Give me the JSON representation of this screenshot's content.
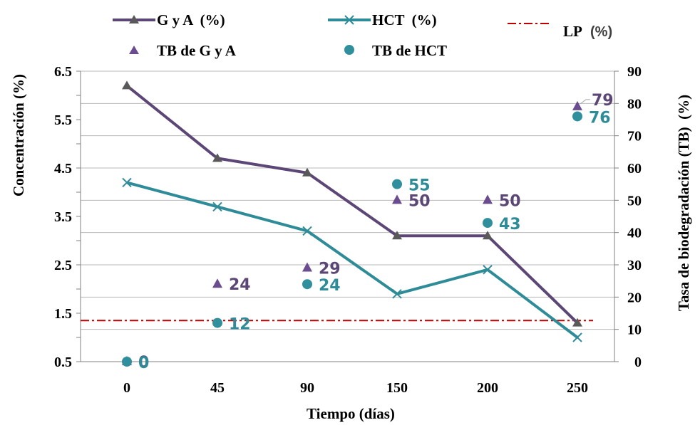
{
  "chart_data": {
    "type": "line",
    "x": [
      "0",
      "45",
      "90",
      "150",
      "200",
      "250"
    ],
    "xlabel": "Tiempo (días)",
    "ylabel": "Concentración (%)",
    "y2label": "Tasa de biodegradación (TB)  (%)",
    "ylim": [
      0.5,
      6.5
    ],
    "yticks": [
      "0.5",
      "1.5",
      "2.5",
      "3.5",
      "4.5",
      "5.5",
      "6.5"
    ],
    "y2lim": [
      0,
      90
    ],
    "y2ticks": [
      "0",
      "10",
      "20",
      "30",
      "40",
      "50",
      "60",
      "70",
      "80",
      "90"
    ],
    "grid": true,
    "legend_position": "top",
    "series": [
      {
        "name": "G y A  (%)",
        "axis": "left",
        "kind": "line",
        "marker": "triangle",
        "color": "#5b4675",
        "values": [
          6.2,
          4.7,
          4.4,
          3.1,
          3.1,
          1.3
        ]
      },
      {
        "name": "HCT  (%)",
        "axis": "left",
        "kind": "line",
        "marker": "x",
        "color": "#2e8b98",
        "values": [
          4.2,
          3.7,
          3.2,
          1.9,
          2.4,
          1.0
        ]
      },
      {
        "name": "TB de G y A",
        "axis": "right",
        "kind": "scatter",
        "marker": "triangle",
        "color": "#6b4c8e",
        "values": [
          0,
          24,
          29,
          50,
          50,
          79
        ],
        "labels": [
          "0",
          "24",
          "29",
          "50",
          "50",
          "79"
        ]
      },
      {
        "name": "TB de HCT",
        "axis": "right",
        "kind": "scatter",
        "marker": "circle",
        "color": "#2f8f9d",
        "values": [
          0,
          12,
          24,
          55,
          43,
          76
        ],
        "labels": [
          "0",
          "12",
          "24",
          "55",
          "43",
          "76"
        ]
      }
    ],
    "reference_line": {
      "name": "LP",
      "unit": "(%)",
      "value": 1.35,
      "axis": "left",
      "color": "#c00000",
      "style": "dash-dot"
    }
  }
}
